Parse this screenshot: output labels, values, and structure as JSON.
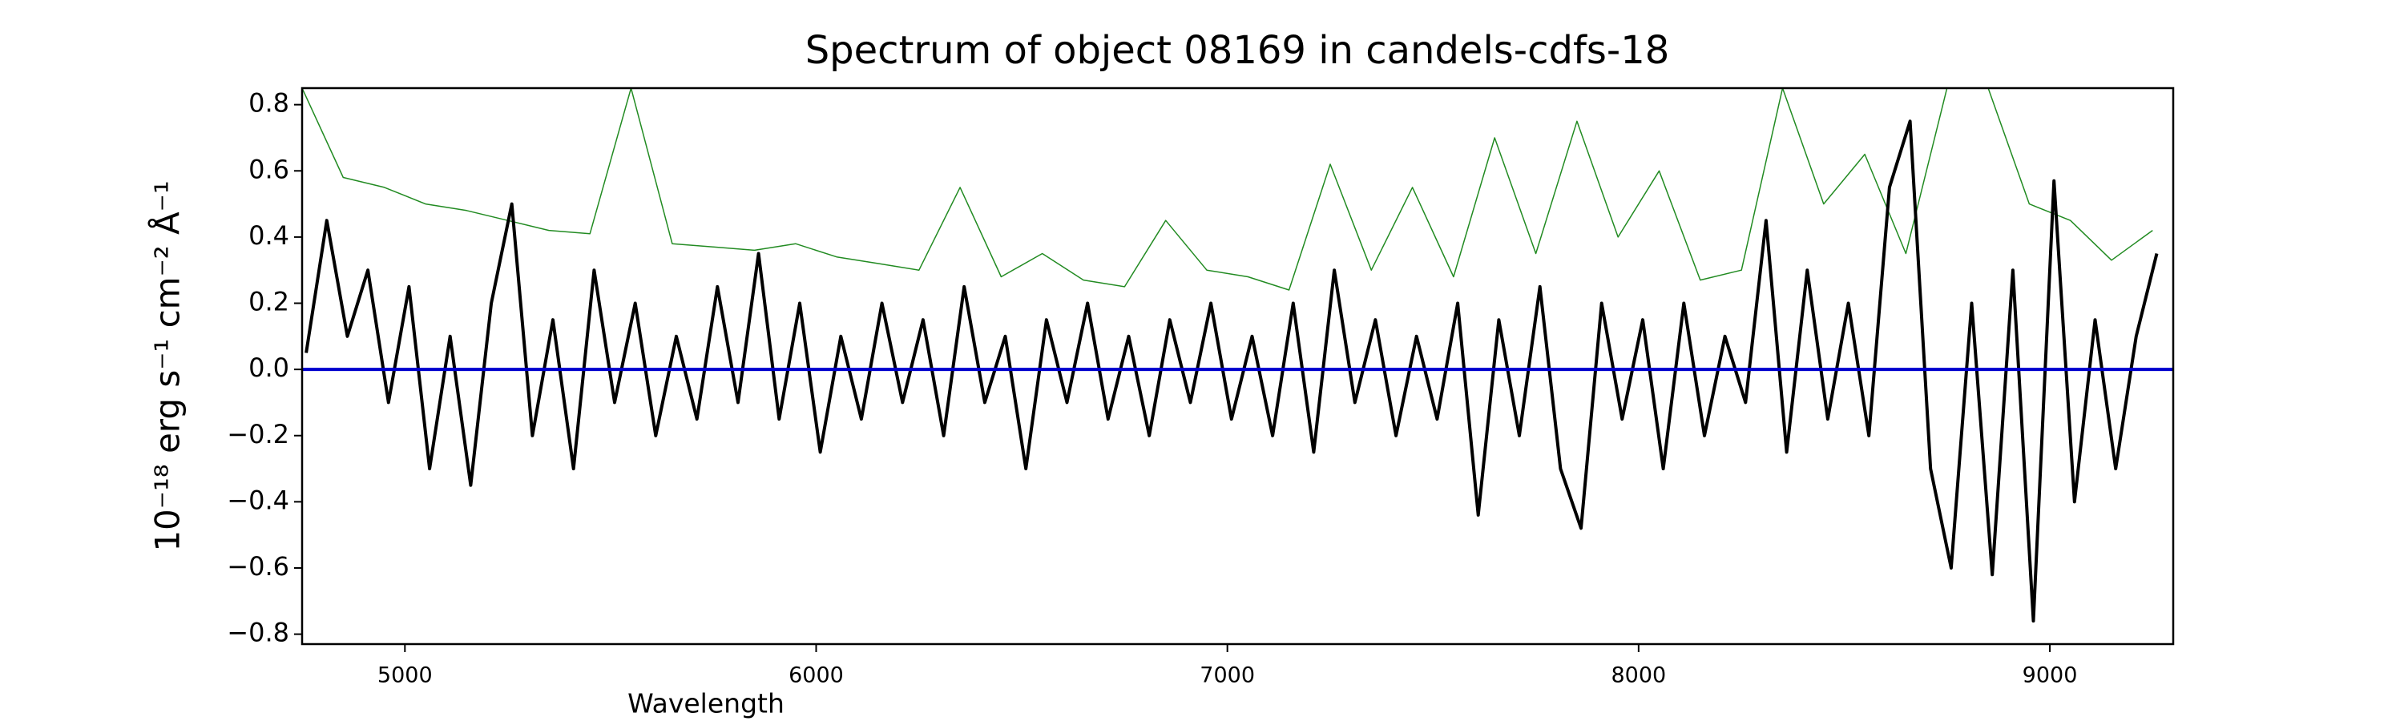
{
  "chart_data": {
    "type": "line",
    "title": "Spectrum of object 08169 in candels-cdfs-18",
    "xlabel": "Wavelength",
    "ylabel": "10⁻¹⁸ erg s⁻¹ cm⁻² Å⁻¹",
    "xlim": [
      4750,
      9300
    ],
    "ylim": [
      -0.83,
      0.85
    ],
    "xticks": [
      5000,
      6000,
      7000,
      8000,
      9000
    ],
    "yticks": [
      {
        "value": -0.8,
        "label": "−0.8"
      },
      {
        "value": -0.6,
        "label": "−0.6"
      },
      {
        "value": -0.4,
        "label": "−0.4"
      },
      {
        "value": -0.2,
        "label": "−0.2"
      },
      {
        "value": 0,
        "label": "0.0"
      },
      0.2,
      0.4,
      0.6,
      0.8
    ],
    "series": [
      {
        "color": "#228b22",
        "width": 1.5,
        "x": [
          4750,
          4850,
          4950,
          5050,
          5150,
          5250,
          5350,
          5450,
          5550,
          5650,
          5750,
          5850,
          5950,
          6050,
          6150,
          6250,
          6350,
          6450,
          6550,
          6650,
          6750,
          6850,
          6950,
          7050,
          7150,
          7250,
          7350,
          7450,
          7550,
          7650,
          7750,
          7850,
          7950,
          8050,
          8150,
          8250,
          8350,
          8450,
          8550,
          8650,
          8750,
          8850,
          8950,
          9050,
          9150,
          9250
        ],
        "values": [
          0.85,
          0.58,
          0.55,
          0.5,
          0.48,
          0.45,
          0.42,
          0.41,
          0.85,
          0.38,
          0.37,
          0.36,
          0.38,
          0.34,
          0.32,
          0.3,
          0.55,
          0.28,
          0.35,
          0.27,
          0.25,
          0.45,
          0.3,
          0.28,
          0.24,
          0.62,
          0.3,
          0.55,
          0.28,
          0.7,
          0.35,
          0.75,
          0.4,
          0.6,
          0.27,
          0.3,
          0.85,
          0.5,
          0.65,
          0.35,
          0.85,
          0.85,
          0.5,
          0.45,
          0.33,
          0.42
        ]
      },
      {
        "color": "#000000",
        "width": 4,
        "x": [
          4760,
          4810,
          4860,
          4910,
          4960,
          5010,
          5060,
          5110,
          5160,
          5210,
          5260,
          5310,
          5360,
          5410,
          5460,
          5510,
          5560,
          5610,
          5660,
          5710,
          5760,
          5810,
          5860,
          5910,
          5960,
          6010,
          6060,
          6110,
          6160,
          6210,
          6260,
          6310,
          6360,
          6410,
          6460,
          6510,
          6560,
          6610,
          6660,
          6710,
          6760,
          6810,
          6860,
          6910,
          6960,
          7010,
          7060,
          7110,
          7160,
          7210,
          7260,
          7310,
          7360,
          7410,
          7460,
          7510,
          7560,
          7610,
          7660,
          7710,
          7760,
          7810,
          7860,
          7910,
          7960,
          8010,
          8060,
          8110,
          8160,
          8210,
          8260,
          8310,
          8360,
          8410,
          8460,
          8510,
          8560,
          8610,
          8660,
          8710,
          8760,
          8810,
          8860,
          8910,
          8960,
          9010,
          9060,
          9110,
          9160,
          9210,
          9260
        ],
        "values": [
          0.05,
          0.45,
          0.1,
          0.3,
          -0.1,
          0.25,
          -0.3,
          0.1,
          -0.35,
          0.2,
          0.5,
          -0.2,
          0.15,
          -0.3,
          0.3,
          -0.1,
          0.2,
          -0.2,
          0.1,
          -0.15,
          0.25,
          -0.1,
          0.35,
          -0.15,
          0.2,
          -0.25,
          0.1,
          -0.15,
          0.2,
          -0.1,
          0.15,
          -0.2,
          0.25,
          -0.1,
          0.1,
          -0.3,
          0.15,
          -0.1,
          0.2,
          -0.15,
          0.1,
          -0.2,
          0.15,
          -0.1,
          0.2,
          -0.15,
          0.1,
          -0.2,
          0.2,
          -0.25,
          0.3,
          -0.1,
          0.15,
          -0.2,
          0.1,
          -0.15,
          0.2,
          -0.44,
          0.15,
          -0.2,
          0.25,
          -0.3,
          -0.48,
          0.2,
          -0.15,
          0.15,
          -0.3,
          0.2,
          -0.2,
          0.1,
          -0.1,
          0.45,
          -0.25,
          0.3,
          -0.15,
          0.2,
          -0.2,
          0.55,
          0.75,
          -0.3,
          -0.6,
          0.2,
          -0.62,
          0.3,
          -0.76,
          0.57,
          -0.4,
          0.15,
          -0.3,
          0.1,
          0.35
        ]
      },
      {
        "color": "#0000cd",
        "width": 4,
        "x": [
          4750,
          9300
        ],
        "values": [
          0,
          0
        ]
      }
    ]
  }
}
